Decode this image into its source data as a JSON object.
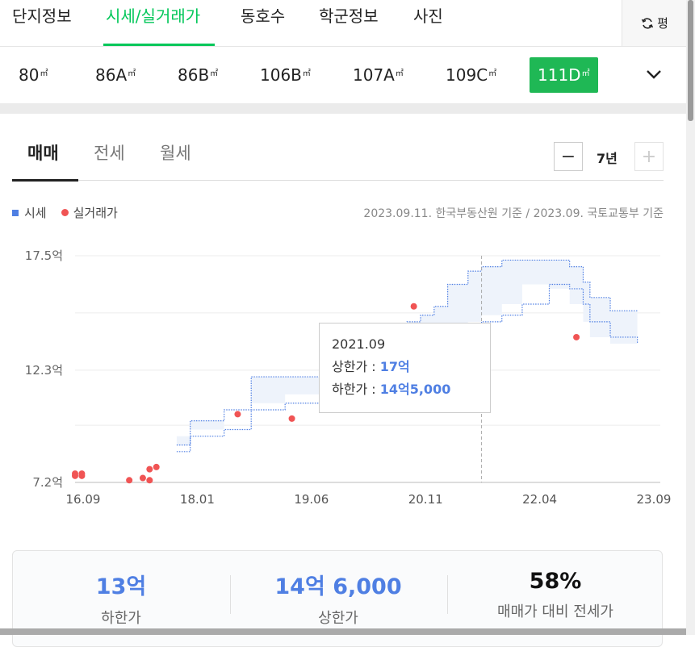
{
  "nav": {
    "tabs": [
      {
        "label": "단지정보"
      },
      {
        "label": "시세/실거래가"
      },
      {
        "label": "동호수"
      },
      {
        "label": "학군정보"
      },
      {
        "label": "사진"
      }
    ],
    "active_tab": "시세/실거래가",
    "unit_toggle": "평"
  },
  "sizes": [
    {
      "label": "80",
      "unit": "㎡"
    },
    {
      "label": "86A",
      "unit": "㎡"
    },
    {
      "label": "86B",
      "unit": "㎡"
    },
    {
      "label": "106B",
      "unit": "㎡"
    },
    {
      "label": "107A",
      "unit": "㎡"
    },
    {
      "label": "109C",
      "unit": "㎡"
    },
    {
      "label": "111D",
      "unit": "㎡"
    }
  ],
  "active_size": "111D",
  "deal_tabs": [
    {
      "label": "매매"
    },
    {
      "label": "전세"
    },
    {
      "label": "월세"
    }
  ],
  "active_deal_tab": "매매",
  "period": {
    "minus": "−",
    "value": "7년",
    "plus": "+"
  },
  "legend": {
    "market": "시세",
    "actual": "실거래가"
  },
  "source": "2023.09.11. 한국부동산원 기준 / 2023.09. 국토교통부 기준",
  "tooltip": {
    "date": "2021.09",
    "upper_label": "상한가 : ",
    "upper_value": "17억",
    "lower_label": "하한가 : ",
    "lower_value": "14억5,000"
  },
  "chart_data": {
    "type": "area",
    "x_ticks": [
      "16.09",
      "18.01",
      "19.06",
      "20.11",
      "22.04",
      "23.09"
    ],
    "y_ticks": [
      "7.2억",
      "12.3억",
      "17.5억"
    ],
    "ylim": [
      7.2,
      17.5
    ],
    "x_range": [
      "2016-09",
      "2023-09"
    ],
    "band": {
      "name": "시세",
      "x": [
        "2017-12",
        "2018-02",
        "2018-07",
        "2018-11",
        "2019-04",
        "2019-10",
        "2020-01",
        "2020-05",
        "2020-10",
        "2020-12",
        "2021-02",
        "2021-04",
        "2021-07",
        "2021-09",
        "2021-12",
        "2022-03",
        "2022-07",
        "2022-10",
        "2022-12",
        "2023-01",
        "2023-04",
        "2023-08"
      ],
      "upper": [
        8.9,
        10.0,
        10.5,
        12.0,
        12.0,
        12.6,
        13.2,
        14.0,
        14.5,
        14.8,
        15.2,
        16.2,
        16.8,
        17.0,
        17.3,
        17.3,
        17.3,
        17.0,
        16.3,
        15.6,
        15.0,
        15.0
      ],
      "lower": [
        8.6,
        9.3,
        9.6,
        10.5,
        10.8,
        11.2,
        11.6,
        12.3,
        12.8,
        13.2,
        13.6,
        14.0,
        14.3,
        14.5,
        14.8,
        15.3,
        16.2,
        16.0,
        15.3,
        14.5,
        13.8,
        13.5
      ]
    },
    "points": {
      "name": "실거래가",
      "x": [
        "2016-09",
        "2016-09",
        "2016-10",
        "2016-10",
        "2017-05",
        "2017-07",
        "2017-08",
        "2017-08",
        "2017-09",
        "2018-09",
        "2019-05",
        "2020-11",
        "2022-11"
      ],
      "y": [
        7.5,
        7.6,
        7.5,
        7.6,
        7.3,
        7.4,
        7.8,
        7.3,
        7.9,
        10.3,
        10.1,
        15.2,
        13.8
      ]
    },
    "highlight_x": "2021-09"
  },
  "summary": {
    "lower": {
      "value": "13억",
      "label": "하한가"
    },
    "upper": {
      "value": "14억 6,000",
      "label": "상한가"
    },
    "ratio": {
      "value": "58%",
      "label": "매매가 대비 전세가"
    }
  },
  "colors": {
    "accent": "#03c75a",
    "active_size": "#1fb855",
    "band": "#4f7fe3",
    "point": "#f05454"
  }
}
